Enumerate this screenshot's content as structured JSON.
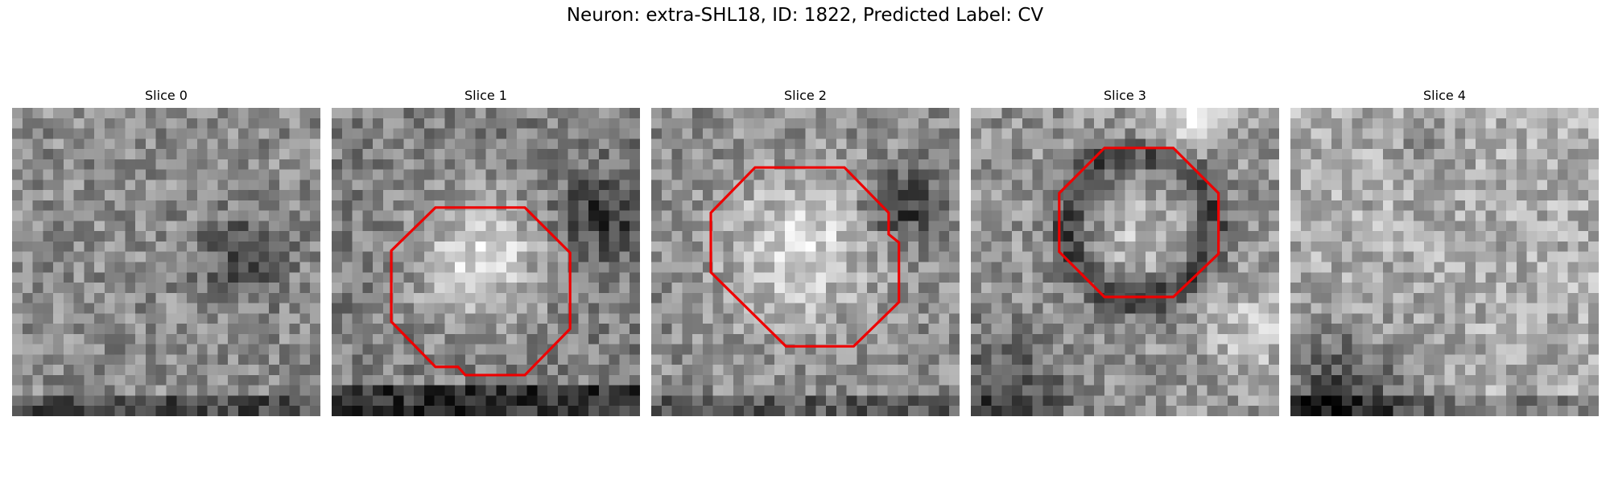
{
  "title": "Neuron: extra-SHL18, ID: 1822, Predicted Label: CV",
  "panels": [
    {
      "title": "Slice 0"
    },
    {
      "title": "Slice 1"
    },
    {
      "title": "Slice 2"
    },
    {
      "title": "Slice 3"
    },
    {
      "title": "Slice 4"
    }
  ]
}
